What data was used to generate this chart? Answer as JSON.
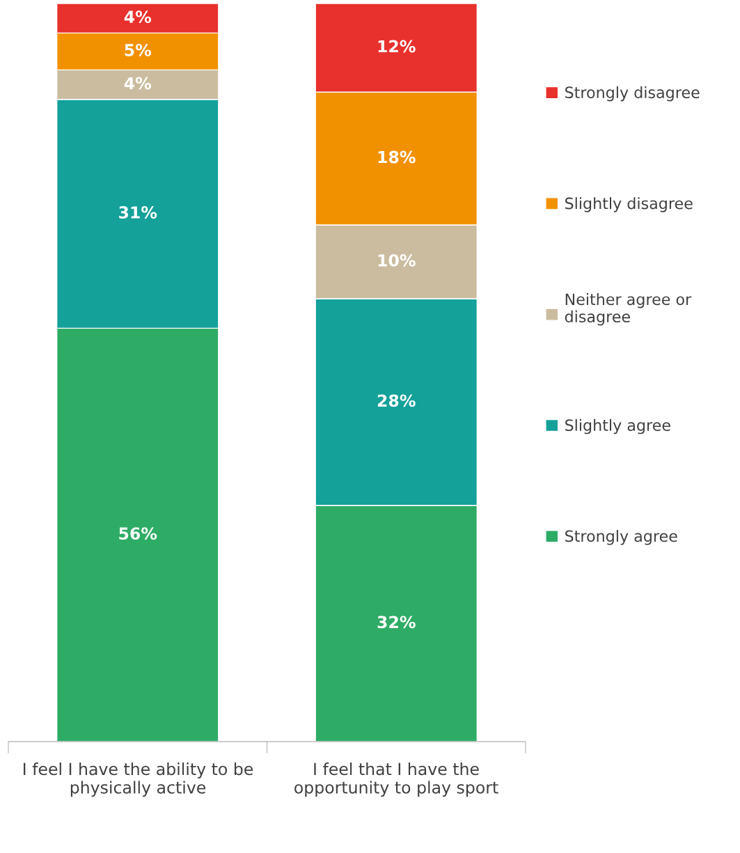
{
  "chart_data": {
    "type": "bar",
    "stacked": true,
    "categories": [
      "I feel I have the ability to be physically active",
      "I feel that I have the opportunity to play sport"
    ],
    "series": [
      {
        "name": "Strongly agree",
        "color": "#2eac66",
        "values": [
          56,
          32
        ],
        "value_labels": [
          "56%",
          "32%"
        ]
      },
      {
        "name": "Slightly agree",
        "color": "#13a19a",
        "values": [
          31,
          28
        ],
        "value_labels": [
          "31%",
          "28%"
        ]
      },
      {
        "name": "Neither agree or disagree",
        "color": "#cbbc9f",
        "values": [
          4,
          10
        ],
        "value_labels": [
          "4%",
          "10%"
        ]
      },
      {
        "name": "Slightly disagree",
        "color": "#f29100",
        "values": [
          5,
          18
        ],
        "value_labels": [
          "5%",
          "18%"
        ]
      },
      {
        "name": "Strongly disagree",
        "color": "#e8312d",
        "values": [
          4,
          12
        ],
        "value_labels": [
          "4%",
          "12%"
        ]
      }
    ],
    "tick_labels": "x",
    "legend": "right"
  }
}
